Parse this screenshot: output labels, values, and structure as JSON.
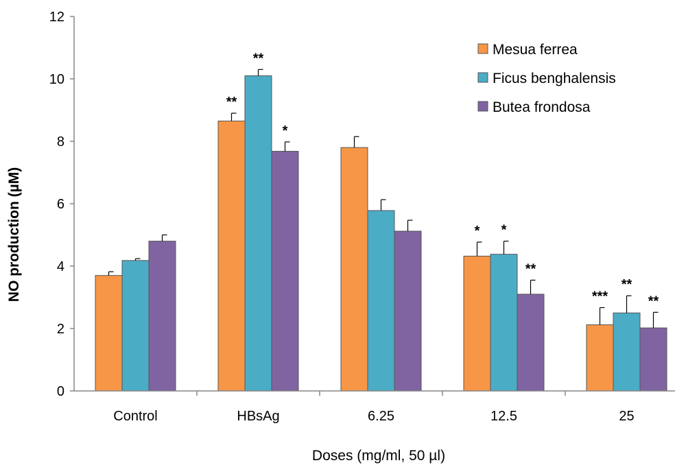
{
  "chart_data": {
    "type": "bar",
    "title": "",
    "xlabel": "Doses (mg/ml, 50 µl)",
    "ylabel": "NO production (µM)",
    "ylim": [
      0,
      12
    ],
    "yticks": [
      0,
      2,
      4,
      6,
      8,
      10,
      12
    ],
    "categories": [
      "Control",
      "HBsAg",
      "6.25",
      "12.5",
      "25"
    ],
    "legend_position": "top-right",
    "grid": false,
    "series": [
      {
        "name": "Mesua ferrea",
        "color": "#F79646",
        "values": [
          3.7,
          8.65,
          7.8,
          4.32,
          2.12
        ],
        "errors": [
          0.12,
          0.25,
          0.35,
          0.45,
          0.55
        ],
        "significance": [
          "",
          "**",
          "",
          "*",
          "***"
        ]
      },
      {
        "name": "Ficus benghalensis",
        "color": "#4BACC6",
        "values": [
          4.18,
          10.1,
          5.78,
          4.38,
          2.5
        ],
        "errors": [
          0.06,
          0.2,
          0.35,
          0.42,
          0.55
        ],
        "significance": [
          "",
          "**",
          "",
          "*",
          "**"
        ]
      },
      {
        "name": "Butea frondosa",
        "color": "#8064A2",
        "values": [
          4.8,
          7.68,
          5.12,
          3.1,
          2.02
        ],
        "errors": [
          0.2,
          0.3,
          0.35,
          0.45,
          0.5
        ],
        "significance": [
          "",
          "*",
          "",
          "**",
          "**"
        ]
      }
    ]
  }
}
